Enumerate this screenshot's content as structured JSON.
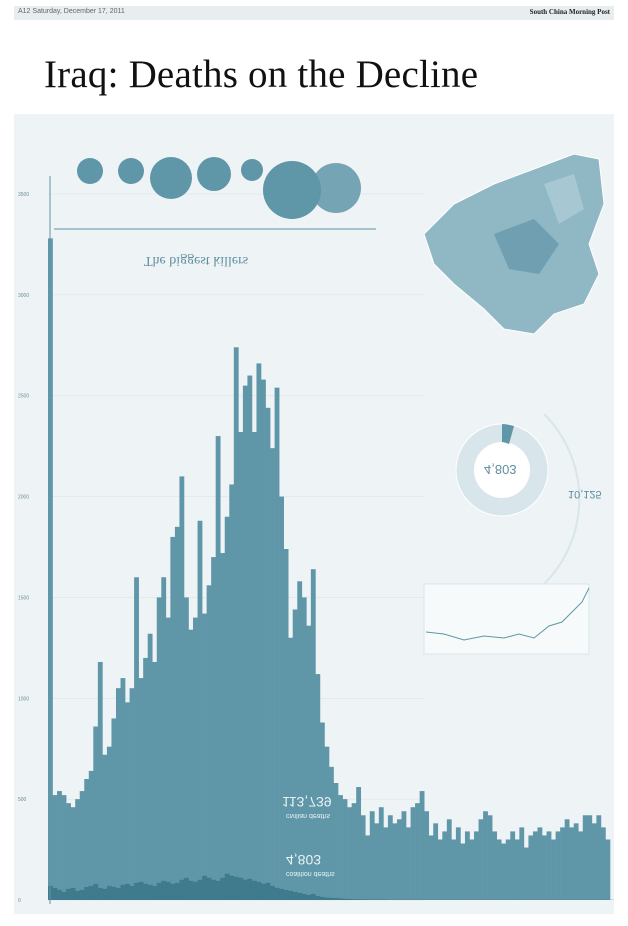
{
  "header": {
    "page_info": "A12   Saturday, December 17, 2011",
    "publication": "South China Morning Post"
  },
  "headline": "Iraq: Deaths on the Decline",
  "graphic": {
    "killers_title": "The biggest killers",
    "total_deaths": "113,739",
    "total_label": "civilian deaths",
    "military_deaths": "4,803",
    "military_label": "coalition deaths",
    "donut_value": "4,803",
    "side_value": "10,125",
    "colors": {
      "bar": "#5f96a8",
      "bar_dark": "#3f7a8d",
      "background": "#eef3f5",
      "map": "#8fb7c4"
    }
  },
  "chart_data": {
    "type": "bar",
    "title": "",
    "xlabel": "",
    "ylabel": "",
    "ylim": [
      0,
      3500
    ],
    "yticks": [
      "0",
      "500",
      "1000",
      "1500",
      "2000",
      "2500",
      "3000",
      "3500"
    ],
    "series": [
      {
        "values": [
          3280,
          520,
          540,
          520,
          480,
          460,
          500,
          540,
          600,
          640,
          860,
          1180,
          720,
          760,
          900,
          1050,
          1100,
          980,
          1050,
          1600,
          1100,
          1200,
          1320,
          1180,
          1500,
          1600,
          1400,
          1800,
          1850,
          2100,
          1500,
          1340,
          1400,
          1880,
          1420,
          1560,
          1700,
          2300,
          1720,
          1900,
          2060,
          2740,
          2320,
          2550,
          2600,
          2320,
          2660,
          2580,
          2440,
          2240,
          2540,
          2000,
          1740,
          1300,
          1440,
          1580,
          1500,
          1360,
          1640,
          1120,
          880,
          760,
          660,
          580,
          520,
          500,
          460,
          480,
          560,
          420,
          320,
          440,
          380,
          460,
          360,
          420,
          380,
          400,
          440,
          360,
          460,
          480,
          540,
          440,
          320,
          380,
          300,
          340,
          400,
          300,
          360,
          280,
          340,
          300,
          340,
          400,
          440,
          420,
          340,
          300,
          280,
          300,
          340,
          300,
          360,
          260,
          320,
          340,
          360,
          320,
          340,
          300,
          340,
          360,
          400,
          360,
          380,
          340,
          420,
          420,
          380,
          420,
          360,
          300
        ]
      },
      {
        "values": [
          70,
          60,
          50,
          40,
          55,
          60,
          45,
          50,
          65,
          70,
          80,
          60,
          55,
          70,
          65,
          60,
          75,
          80,
          70,
          85,
          90,
          80,
          75,
          70,
          85,
          95,
          90,
          80,
          85,
          100,
          110,
          95,
          90,
          100,
          120,
          110,
          100,
          95,
          110,
          130,
          120,
          115,
          110,
          100,
          105,
          95,
          90,
          80,
          85,
          70,
          60,
          55,
          50,
          45,
          40,
          35,
          30,
          25,
          30,
          20,
          15,
          12,
          10,
          10,
          8,
          6,
          5,
          4,
          4,
          3,
          3,
          2,
          2,
          2,
          2,
          1,
          1,
          1,
          1,
          1,
          1,
          1,
          1,
          1,
          1,
          1,
          1,
          1,
          1,
          1,
          1,
          1,
          1,
          1,
          1,
          1,
          1,
          1,
          1,
          1,
          1,
          1,
          1,
          1,
          1,
          1,
          1,
          1,
          1,
          1,
          1,
          1,
          1,
          1,
          1,
          1,
          1,
          1,
          1,
          1,
          1,
          1,
          1,
          1,
          1,
          1
        ]
      }
    ]
  }
}
